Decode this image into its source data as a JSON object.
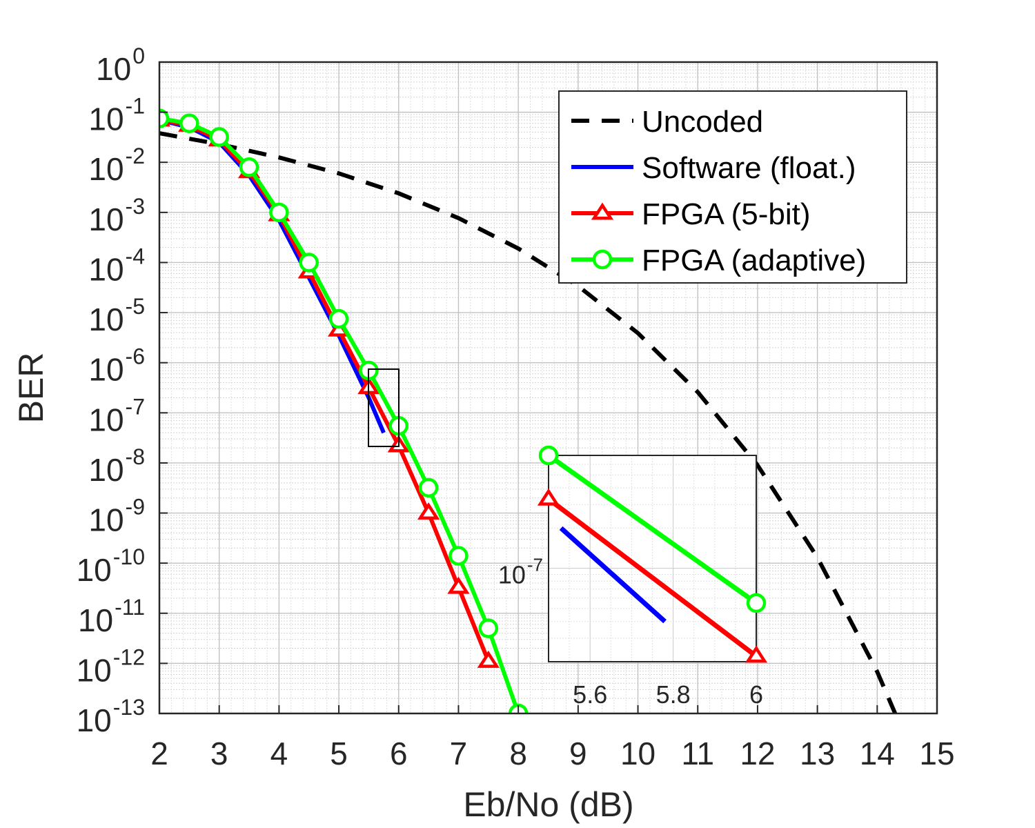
{
  "chart_data": {
    "type": "line",
    "title": "",
    "xlabel": "Eb/No (dB)",
    "ylabel": "BER",
    "xlim": [
      2,
      15
    ],
    "ylim": [
      1e-13,
      1
    ],
    "yscale": "log",
    "grid": true,
    "minor_grid": true,
    "legend_position": "top-right",
    "x_ticks": [
      2,
      3,
      4,
      5,
      6,
      7,
      8,
      9,
      10,
      11,
      12,
      13,
      14,
      15
    ],
    "y_ticks": [
      {
        "base": "10",
        "exp": "0",
        "value": 1
      },
      {
        "base": "10",
        "exp": "-1",
        "value": 0.1
      },
      {
        "base": "10",
        "exp": "-2",
        "value": 0.01
      },
      {
        "base": "10",
        "exp": "-3",
        "value": 0.001
      },
      {
        "base": "10",
        "exp": "-4",
        "value": 0.0001
      },
      {
        "base": "10",
        "exp": "-5",
        "value": 1e-05
      },
      {
        "base": "10",
        "exp": "-6",
        "value": 1e-06
      },
      {
        "base": "10",
        "exp": "-7",
        "value": 1e-07
      },
      {
        "base": "10",
        "exp": "-8",
        "value": 1e-08
      },
      {
        "base": "10",
        "exp": "-9",
        "value": 1e-09
      },
      {
        "base": "10",
        "exp": "-10",
        "value": 1e-10
      },
      {
        "base": "10",
        "exp": "-11",
        "value": 1e-11
      },
      {
        "base": "10",
        "exp": "-12",
        "value": 1e-12
      },
      {
        "base": "10",
        "exp": "-13",
        "value": 1e-13
      }
    ],
    "series": [
      {
        "name": "Uncoded",
        "color": "#000000",
        "style": "dashed",
        "marker": "none",
        "x": [
          2,
          3,
          4,
          5,
          6,
          7,
          8,
          9,
          10,
          11,
          12,
          13,
          14,
          14.3
        ],
        "y": [
          0.038,
          0.023,
          0.0125,
          0.006,
          0.0024,
          0.00077,
          0.00019,
          3.4e-05,
          3.9e-06,
          2.6e-07,
          9e-09,
          1.3e-10,
          6.8e-13,
          1e-13
        ]
      },
      {
        "name": "Software (float.)",
        "color": "#0000ff",
        "style": "solid",
        "marker": "none",
        "x": [
          2,
          2.5,
          3,
          3.5,
          4,
          4.5,
          5,
          5.5,
          5.75
        ],
        "y": [
          0.07,
          0.05,
          0.025,
          0.0055,
          0.0007,
          5e-05,
          3.5e-06,
          2e-07,
          4e-08
        ]
      },
      {
        "name": "FPGA (5-bit)",
        "color": "#ff0000",
        "style": "solid",
        "marker": "triangle",
        "x": [
          2,
          2.5,
          3,
          3.5,
          4,
          4.5,
          5,
          5.5,
          6,
          6.5,
          7,
          7.5
        ],
        "y": [
          0.07,
          0.055,
          0.028,
          0.0065,
          0.0009,
          6.5e-05,
          4.5e-06,
          3.2e-07,
          2.2e-08,
          1e-09,
          3.3e-11,
          1.1e-12
        ]
      },
      {
        "name": "FPGA (adaptive)",
        "color": "#00ff00",
        "style": "solid",
        "marker": "circle",
        "x": [
          2,
          2.5,
          3,
          3.5,
          4,
          4.5,
          5,
          5.5,
          6,
          6.5,
          7,
          7.5,
          8
        ],
        "y": [
          0.075,
          0.06,
          0.032,
          0.008,
          0.001,
          0.0001,
          7.5e-06,
          7e-07,
          5.5e-08,
          3.2e-09,
          1.4e-10,
          5e-12,
          1e-13
        ]
      }
    ],
    "inset": {
      "xlim": [
        5.5,
        6
      ],
      "ylim": [
        2e-08,
        7e-07
      ],
      "x_ticks": [
        "5.6",
        "5.8",
        "6"
      ],
      "x_tick_values": [
        5.6,
        5.8,
        6
      ],
      "y_tick": {
        "base": "10",
        "exp": "-7",
        "value": 1e-07
      },
      "series": [
        {
          "name": "Software (float.)",
          "x": [
            5.53,
            5.78
          ],
          "y": [
            2e-07,
            4e-08
          ]
        },
        {
          "name": "FPGA (5-bit)",
          "x": [
            5.5,
            6
          ],
          "y": [
            3.3e-07,
            2.2e-08
          ]
        },
        {
          "name": "FPGA (adaptive)",
          "x": [
            5.5,
            6
          ],
          "y": [
            7e-07,
            5.5e-08
          ]
        }
      ]
    }
  }
}
